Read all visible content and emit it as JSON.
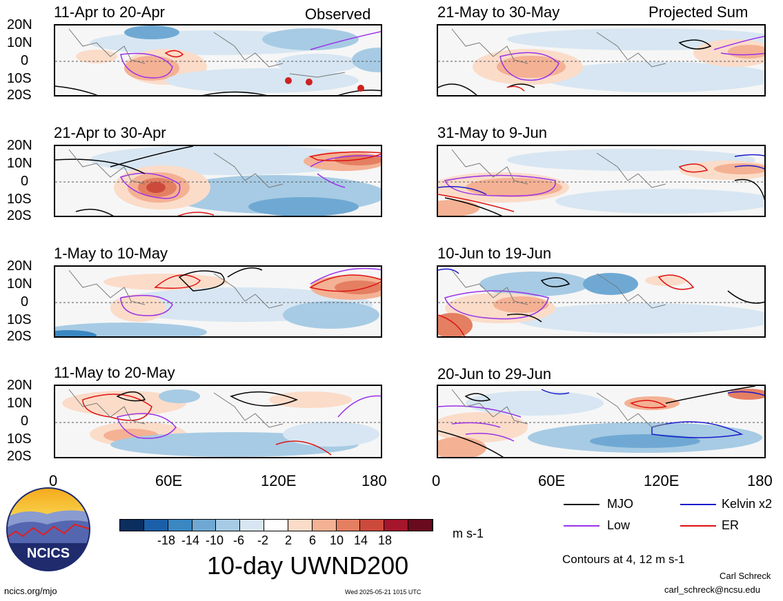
{
  "figure_title": "10-day UWND200",
  "units": "m s-1",
  "observed_tag": "Observed",
  "projected_tag": "Projected Sum",
  "lat_labels": [
    "20N",
    "10N",
    "0",
    "10S",
    "20S"
  ],
  "lon_labels": [
    "0",
    "60E",
    "120E",
    "180"
  ],
  "panels_left": [
    {
      "title": "11-Apr to 20-Apr"
    },
    {
      "title": "21-Apr to 30-Apr"
    },
    {
      "title": "1-May to 10-May"
    },
    {
      "title": "11-May to 20-May"
    }
  ],
  "panels_right": [
    {
      "title": "21-May to 30-May"
    },
    {
      "title": "31-May to 9-Jun"
    },
    {
      "title": "10-Jun to 19-Jun"
    },
    {
      "title": "20-Jun to 29-Jun"
    }
  ],
  "colorbar": {
    "labels": [
      "-18",
      "-14",
      "-10",
      "-6",
      "-2",
      "2",
      "6",
      "10",
      "14",
      "18"
    ],
    "colors": [
      "#0b2e5e",
      "#1b5fa8",
      "#3a87c2",
      "#6fa9d3",
      "#a7cbe4",
      "#d7e6f2",
      "#ffffff",
      "#fbdcc9",
      "#f4b194",
      "#e47f62",
      "#cc4a3c",
      "#a5152b",
      "#6a0a1e"
    ]
  },
  "legend": {
    "mjo": {
      "label": "MJO",
      "color": "#000000"
    },
    "kelvin": {
      "label": "Kelvin x2",
      "color": "#1a1acc"
    },
    "low": {
      "label": "Low",
      "color": "#9b30e8"
    },
    "er": {
      "label": "ER",
      "color": "#dd1111"
    }
  },
  "contours_note": "Contours at 4, 12 m s-1",
  "author": "Carl Schreck",
  "email": "carl_schreck@ncsu.edu",
  "site": "ncics.org/mjo",
  "timestamp": "Wed 2025-05-21 1015 UTC",
  "logo_text": "NCICS"
}
